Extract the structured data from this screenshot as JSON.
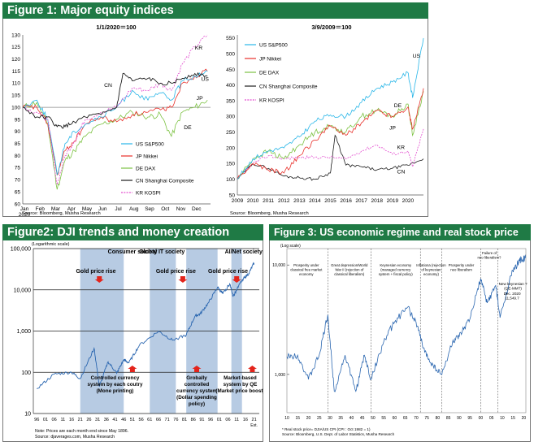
{
  "figures": {
    "fig1": {
      "title": "Figure 1: Major equity indices",
      "source": "Source: Bloomberg, Musha Research"
    },
    "fig2": {
      "title": "Figure2: DJI trends and  money creation",
      "note1": "Note: Prices are each month end since May 1896.",
      "note2": "Source: djaverages.com, Musha Research"
    },
    "fig3": {
      "title": "Figure 3: US economic regime and real stock price",
      "note1": "*  Real stock price= DJIA/US CPI  (CPI : Oct 1982 = 1)",
      "note2": "Source: Bloomberg, U.S. Dept. of Labor Statistics, Musha Research"
    }
  },
  "chart_data": [
    {
      "id": "fig1-left",
      "type": "line",
      "title": "1/1/2020＝100",
      "xlabels": [
        "Jan",
        "Feb",
        "Mar",
        "Apr",
        "May",
        "Jun",
        "Jul",
        "Aug",
        "Sep",
        "Oct",
        "Nov",
        "Dec"
      ],
      "xsub": "2020",
      "yticks": [
        60,
        65,
        70,
        75,
        80,
        85,
        90,
        95,
        100,
        105,
        110,
        115,
        120,
        125,
        130
      ],
      "ylim": [
        60,
        130
      ],
      "legend": [
        "US S&P500",
        "JP Nikkei",
        "DE DAX",
        "CN Shanghai Composite",
        "KR KOSPI"
      ],
      "annotations": [
        "KR",
        "CN",
        "US",
        "JP",
        "DE"
      ],
      "colors": {
        "US": "#2ab3e6",
        "JP": "#e8302a",
        "DE": "#7cc242",
        "CN": "#222222",
        "KR": "#e34fd0"
      },
      "series": [
        {
          "name": "US S&P500",
          "x": [
            0,
            0.9,
            1.6,
            2.2,
            2.7,
            3.3,
            4,
            5,
            6,
            7,
            8,
            8.8,
            9.5,
            10.2,
            11,
            11.8
          ],
          "values": [
            100,
            103,
            95,
            72,
            85,
            90,
            93,
            96,
            100,
            107,
            103,
            106,
            103,
            111,
            113,
            115
          ]
        },
        {
          "name": "JP Nikkei",
          "x": [
            0,
            0.9,
            1.6,
            2.2,
            2.7,
            3.3,
            4,
            5,
            6,
            7,
            8,
            8.8,
            9.5,
            10.2,
            11,
            11.8
          ],
          "values": [
            100,
            100,
            93,
            72,
            82,
            86,
            93,
            96,
            94,
            97,
            98,
            99,
            100,
            110,
            113,
            115
          ]
        },
        {
          "name": "DE DAX",
          "x": [
            0,
            0.9,
            1.6,
            2.2,
            2.7,
            3.3,
            4,
            5,
            6,
            7,
            8,
            8.8,
            9.5,
            10.2,
            11,
            11.8
          ],
          "values": [
            100,
            102,
            93,
            66,
            78,
            82,
            88,
            93,
            95,
            98,
            96,
            97,
            88,
            98,
            100,
            103
          ]
        },
        {
          "name": "CN Shanghai Composite",
          "x": [
            0,
            0.9,
            1.6,
            2.2,
            2.7,
            3.3,
            4,
            5,
            6,
            6.4,
            7,
            8,
            8.8,
            9.5,
            10.2,
            11,
            11.8
          ],
          "values": [
            100,
            96,
            96,
            92,
            92,
            94,
            96,
            97,
            100,
            114,
            111,
            112,
            110,
            110,
            112,
            114,
            113
          ]
        },
        {
          "name": "KR KOSPI",
          "x": [
            0,
            0.9,
            1.6,
            2.2,
            2.7,
            3.3,
            4,
            5,
            6,
            7,
            8,
            8.8,
            9.5,
            10.2,
            11,
            11.8
          ],
          "values": [
            100,
            98,
            95,
            68,
            80,
            86,
            95,
            98,
            100,
            108,
            107,
            110,
            107,
            118,
            125,
            130
          ]
        }
      ]
    },
    {
      "id": "fig1-right",
      "type": "line",
      "title": "3/9/2009＝100",
      "xlabels": [
        "2009",
        "2010",
        "2011",
        "2012",
        "2013",
        "2014",
        "2015",
        "2016",
        "2017",
        "2018",
        "2019",
        "2020"
      ],
      "yticks": [
        50,
        100,
        150,
        200,
        250,
        300,
        350,
        400,
        450,
        500,
        550
      ],
      "ylim": [
        50,
        560
      ],
      "legend": [
        "US S&P500",
        "JP Nikkei",
        "DE DAX",
        "CN Shanghai Composite",
        "KR KOSPI"
      ],
      "annotations": [
        "US",
        "DE",
        "JP",
        "KR",
        "CN"
      ],
      "series": [
        {
          "name": "US S&P500",
          "x": [
            0,
            1,
            2,
            3,
            4,
            5,
            6,
            7,
            8,
            9,
            10,
            11,
            11.3,
            12
          ],
          "values": [
            100,
            165,
            190,
            200,
            235,
            285,
            305,
            300,
            345,
            390,
            410,
            440,
            360,
            550
          ]
        },
        {
          "name": "JP Nikkei",
          "x": [
            0,
            1,
            2,
            3,
            4,
            5,
            6,
            7,
            8,
            9,
            10,
            11,
            11.3,
            12
          ],
          "values": [
            100,
            150,
            130,
            120,
            175,
            225,
            270,
            240,
            280,
            320,
            300,
            330,
            260,
            390
          ]
        },
        {
          "name": "DE DAX",
          "x": [
            0,
            1,
            2,
            3,
            4,
            5,
            6,
            7,
            8,
            9,
            10,
            11,
            11.3,
            12
          ],
          "values": [
            100,
            165,
            190,
            165,
            210,
            250,
            270,
            250,
            300,
            320,
            300,
            340,
            240,
            380
          ]
        },
        {
          "name": "CN Shanghai Composite",
          "x": [
            0,
            1,
            2,
            3,
            4,
            5,
            6,
            6.3,
            7,
            8,
            9,
            10,
            11,
            12
          ],
          "values": [
            100,
            150,
            135,
            110,
            105,
            100,
            120,
            240,
            145,
            140,
            130,
            135,
            145,
            165
          ]
        },
        {
          "name": "KR KOSPI",
          "x": [
            0,
            1,
            2,
            3,
            4,
            5,
            6,
            7,
            8,
            9,
            10,
            11,
            11.3,
            12
          ],
          "values": [
            100,
            150,
            175,
            165,
            170,
            170,
            170,
            165,
            190,
            210,
            180,
            190,
            140,
            260
          ]
        }
      ]
    },
    {
      "id": "fig2",
      "type": "line",
      "yscale": "log",
      "ylabel": "(Logarithmic scale)",
      "yticks": [
        "100,000",
        "10,000",
        "1,000",
        "100",
        "10"
      ],
      "xlabels": [
        "96",
        "01",
        "06",
        "11",
        "16",
        "21",
        "26",
        "31",
        "36",
        "41",
        "46",
        "51",
        "56",
        "61",
        "66",
        "71",
        "76",
        "81",
        "86",
        "91",
        "96",
        "01",
        "06",
        "11",
        "16",
        "21"
      ],
      "xsuffix": "Est.",
      "eras": [
        "Consumer society",
        "Global  IT society",
        "AI/Net society"
      ],
      "events": [
        "Gold  price rise",
        "Gold  price rise",
        "Gold  price rise"
      ],
      "policies": [
        "Controlled currency system by each coutry (Mone printing)",
        "Grobally controlled currency system (Dollar spending policy)",
        "Market-based system  by QE (Market price boost)"
      ],
      "series": [
        {
          "name": "DJI",
          "x": [
            1896,
            1906,
            1916,
            1921,
            1929,
            1932,
            1937,
            1942,
            1946,
            1949,
            1955,
            1966,
            1974,
            1982,
            1987,
            1990,
            1995,
            2000,
            2003,
            2007,
            2009,
            2014,
            2018,
            2021
          ],
          "values": [
            40,
            90,
            100,
            70,
            380,
            45,
            180,
            95,
            200,
            170,
            450,
            990,
            600,
            800,
            2300,
            2600,
            5000,
            11500,
            8000,
            14000,
            7000,
            17000,
            25000,
            45000
          ]
        }
      ]
    },
    {
      "id": "fig3",
      "type": "line",
      "yscale": "log",
      "ylabel": "(Log scale)",
      "yticks": [
        "10,000",
        "1,000"
      ],
      "xlabels": [
        "10",
        "15",
        "20",
        "25",
        "30",
        "35",
        "40",
        "45",
        "50",
        "55",
        "60",
        "65",
        "70",
        "75",
        "80",
        "85",
        "90",
        "95",
        "00",
        "05",
        "10",
        "15",
        "20"
      ],
      "regimes": [
        "Prosperity under classical free market economy",
        "Great depression/World War II (rejection of classical liberalism)",
        "Keynesian economy (managed currency system + fiscal policy)",
        "Inflationa (rejection of keynesian economy)",
        "Prosperity under neo liberalism",
        "Failure of neo liberalism?",
        "New keynesian ?  (QE-MMT)"
      ],
      "endlabel": [
        "Dec. 2020",
        "11,549.7"
      ],
      "series": [
        {
          "name": "Real stock price",
          "x": [
            1910,
            1915,
            1920,
            1925,
            1929,
            1932,
            1937,
            1942,
            1946,
            1949,
            1955,
            1960,
            1966,
            1970,
            1974,
            1978,
            1982,
            1987,
            1990,
            1995,
            2000,
            2003,
            2007,
            2009,
            2014,
            2018,
            2020.9
          ],
          "values": [
            1450,
            1500,
            900,
            1500,
            3500,
            700,
            1500,
            700,
            1500,
            900,
            2000,
            3000,
            4100,
            3000,
            1600,
            1200,
            1000,
            2000,
            2200,
            3200,
            7500,
            4500,
            6500,
            3300,
            8000,
            11000,
            11550
          ]
        }
      ]
    }
  ]
}
